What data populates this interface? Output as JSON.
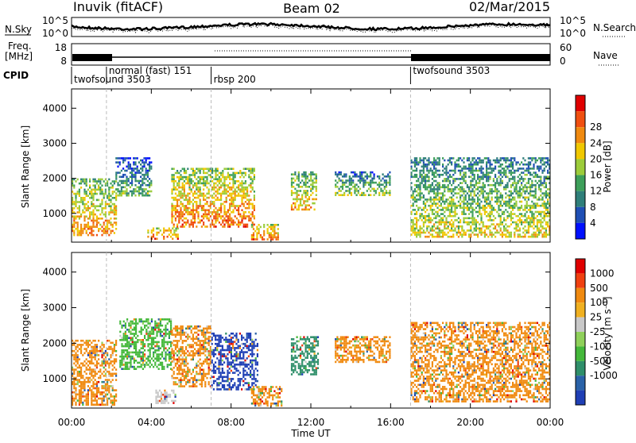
{
  "header": {
    "station": "Inuvik (fitACF)",
    "beam": "Beam 02",
    "date": "02/Mar/2015"
  },
  "panels": {
    "nsky": {
      "left_label": "N.Sky",
      "right_label": "N.Search",
      "y_ticks": [
        "10^5",
        "10^0"
      ],
      "right_ticks": [
        "10^5",
        "10^0"
      ]
    },
    "freq": {
      "left_label_1": "Freq.",
      "left_label_2": "[MHz]",
      "right_label": "Nave",
      "y_ticks": [
        "18",
        "8"
      ],
      "right_ticks": [
        "60",
        "0"
      ]
    },
    "cpid": {
      "label": "CPID",
      "segments": [
        {
          "start": 0.0,
          "end": 1.75,
          "text": "twofsound 3503"
        },
        {
          "start": 1.75,
          "end": 7.0,
          "text": "normal (fast) 151"
        },
        {
          "start": 7.0,
          "end": 17.0,
          "text": "rbsp 200"
        },
        {
          "start": 17.0,
          "end": 24.0,
          "text": "twofsound 3503"
        }
      ]
    }
  },
  "chart_data": [
    {
      "type": "heatmap",
      "panel": "power",
      "ylabel": "Slant Range [km]",
      "xlabel": "",
      "x_ticks": [
        "00:00",
        "04:00",
        "08:00",
        "12:00",
        "16:00",
        "20:00",
        "00:00"
      ],
      "xlim_hours": [
        0,
        24
      ],
      "y_ticks": [
        1000,
        2000,
        3000,
        4000
      ],
      "ylim": [
        180,
        4550
      ],
      "colorbar": {
        "label": "Power [dB]",
        "ticks": [
          "4",
          "8",
          "12",
          "16",
          "20",
          "24",
          "28"
        ],
        "colors": [
          "#0010ff",
          "#1f4fb5",
          "#2f7f7a",
          "#3d9f5a",
          "#9ccc3a",
          "#f0c800",
          "#f08a10",
          "#f04f10",
          "#e00000"
        ]
      },
      "echo_regions": [
        {
          "t0": 0.0,
          "t1": 2.2,
          "r0": 400,
          "r1": 2000,
          "level": 0.75
        },
        {
          "t0": 2.2,
          "t1": 4.0,
          "r0": 1500,
          "r1": 2600,
          "level": 0.45
        },
        {
          "t0": 3.8,
          "t1": 5.3,
          "r0": 250,
          "r1": 600,
          "level": 0.85
        },
        {
          "t0": 5.0,
          "t1": 9.2,
          "r0": 600,
          "r1": 2300,
          "level": 0.8
        },
        {
          "t0": 9.0,
          "t1": 10.4,
          "r0": 250,
          "r1": 700,
          "level": 0.85
        },
        {
          "t0": 11.0,
          "t1": 12.3,
          "r0": 1100,
          "r1": 2200,
          "level": 0.7
        },
        {
          "t0": 13.2,
          "t1": 16.0,
          "r0": 1500,
          "r1": 2200,
          "level": 0.55
        },
        {
          "t0": 17.0,
          "t1": 24.0,
          "r0": 350,
          "r1": 2600,
          "level": 0.6
        }
      ]
    },
    {
      "type": "heatmap",
      "panel": "velocity",
      "ylabel": "Slant Range [km]",
      "xlabel": "Time UT",
      "x_ticks": [
        "00:00",
        "04:00",
        "08:00",
        "12:00",
        "16:00",
        "20:00",
        "00:00"
      ],
      "xlim_hours": [
        0,
        24
      ],
      "y_ticks": [
        1000,
        2000,
        3000,
        4000
      ],
      "ylim": [
        180,
        4550
      ],
      "colorbar": {
        "label": "Velocity [m s⁻¹]",
        "ticks": [
          "1000",
          "500",
          "100",
          "25",
          "-25",
          "-100",
          "-500",
          "-1000"
        ],
        "colors": [
          "#1f3fb5",
          "#2a62a8",
          "#2f8f6a",
          "#44b83a",
          "#8fd05a",
          "#c8c8c8",
          "#f0b020",
          "#f08a10",
          "#f04010",
          "#e00000"
        ]
      },
      "echo_regions": [
        {
          "t0": 0.0,
          "t1": 2.2,
          "r0": 300,
          "r1": 2100,
          "color": "#f08a10"
        },
        {
          "t0": 2.4,
          "t1": 5.0,
          "r0": 1300,
          "r1": 2700,
          "color": "#44b83a"
        },
        {
          "t0": 4.2,
          "t1": 5.2,
          "r0": 300,
          "r1": 700,
          "color": "#c8c8c8"
        },
        {
          "t0": 5.0,
          "t1": 7.0,
          "r0": 800,
          "r1": 2500,
          "color": "#f08a10"
        },
        {
          "t0": 7.0,
          "t1": 9.3,
          "r0": 700,
          "r1": 2300,
          "color": "#1f3fb5"
        },
        {
          "t0": 9.0,
          "t1": 10.5,
          "r0": 250,
          "r1": 800,
          "color": "#f08a10"
        },
        {
          "t0": 11.0,
          "t1": 12.4,
          "r0": 1100,
          "r1": 2200,
          "color": "#2f8f6a"
        },
        {
          "t0": 13.2,
          "t1": 16.0,
          "r0": 1500,
          "r1": 2200,
          "color": "#f08a10"
        },
        {
          "t0": 17.0,
          "t1": 24.0,
          "r0": 350,
          "r1": 2600,
          "color": "#f08a10"
        }
      ]
    }
  ]
}
